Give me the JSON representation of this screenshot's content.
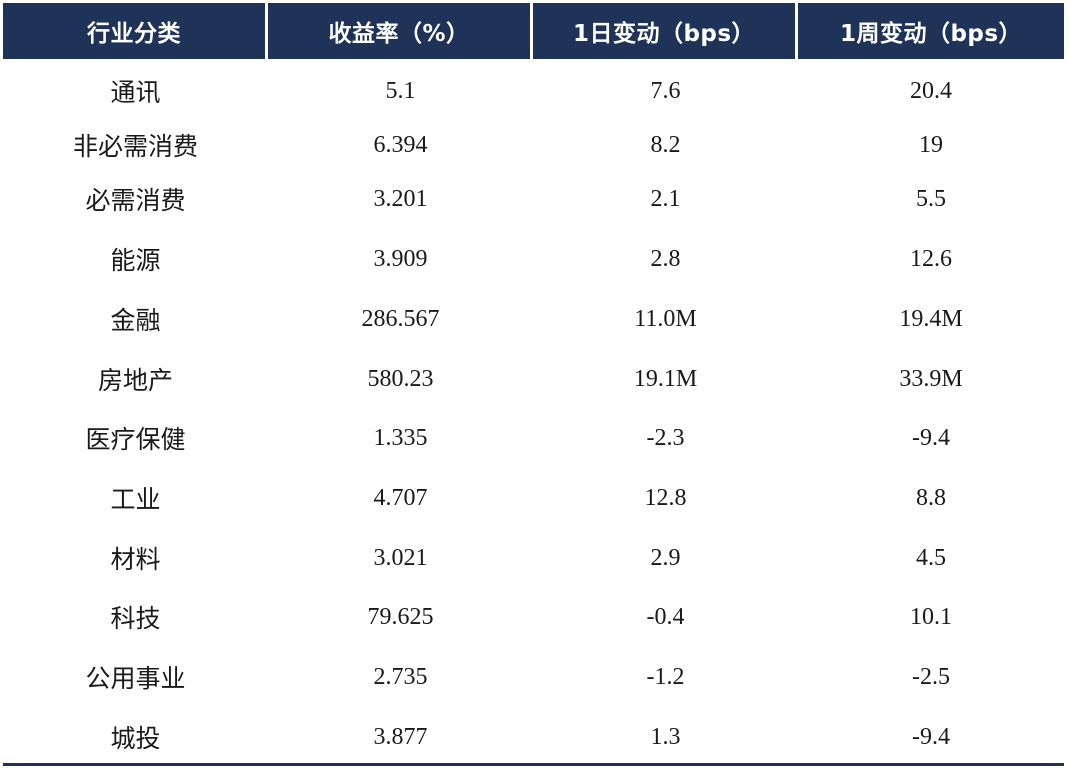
{
  "header": {
    "col0": "行业分类",
    "col1": "收益率（%）",
    "col2": "1日变动（bps）",
    "col3": "1周变动（bps）"
  },
  "rows": [
    {
      "category": "通讯",
      "yield": "5.1",
      "change_1d": "7.6",
      "change_1w": "20.4"
    },
    {
      "category": "非必需消费",
      "yield": "6.394",
      "change_1d": "8.2",
      "change_1w": "19"
    },
    {
      "category": "必需消费",
      "yield": "3.201",
      "change_1d": "2.1",
      "change_1w": "5.5"
    },
    {
      "category": "能源",
      "yield": "3.909",
      "change_1d": "2.8",
      "change_1w": "12.6"
    },
    {
      "category": "金融",
      "yield": "286.567",
      "change_1d": "11.0M",
      "change_1w": "19.4M"
    },
    {
      "category": "房地产",
      "yield": "580.23",
      "change_1d": "19.1M",
      "change_1w": "33.9M"
    },
    {
      "category": "医疗保健",
      "yield": "1.335",
      "change_1d": "-2.3",
      "change_1w": "-9.4"
    },
    {
      "category": "工业",
      "yield": "4.707",
      "change_1d": "12.8",
      "change_1w": "8.8"
    },
    {
      "category": "材料",
      "yield": "3.021",
      "change_1d": "2.9",
      "change_1w": "4.5"
    },
    {
      "category": "科技",
      "yield": "79.625",
      "change_1d": "-0.4",
      "change_1w": "10.1"
    },
    {
      "category": "公用事业",
      "yield": "2.735",
      "change_1d": "-1.2",
      "change_1w": "-2.5"
    },
    {
      "category": "城投",
      "yield": "3.877",
      "change_1d": "1.3",
      "change_1w": "-9.4"
    }
  ],
  "colors": {
    "header_bg": "#1e3357",
    "header_text": "#ffffff",
    "body_text": "#1a1a1a"
  }
}
